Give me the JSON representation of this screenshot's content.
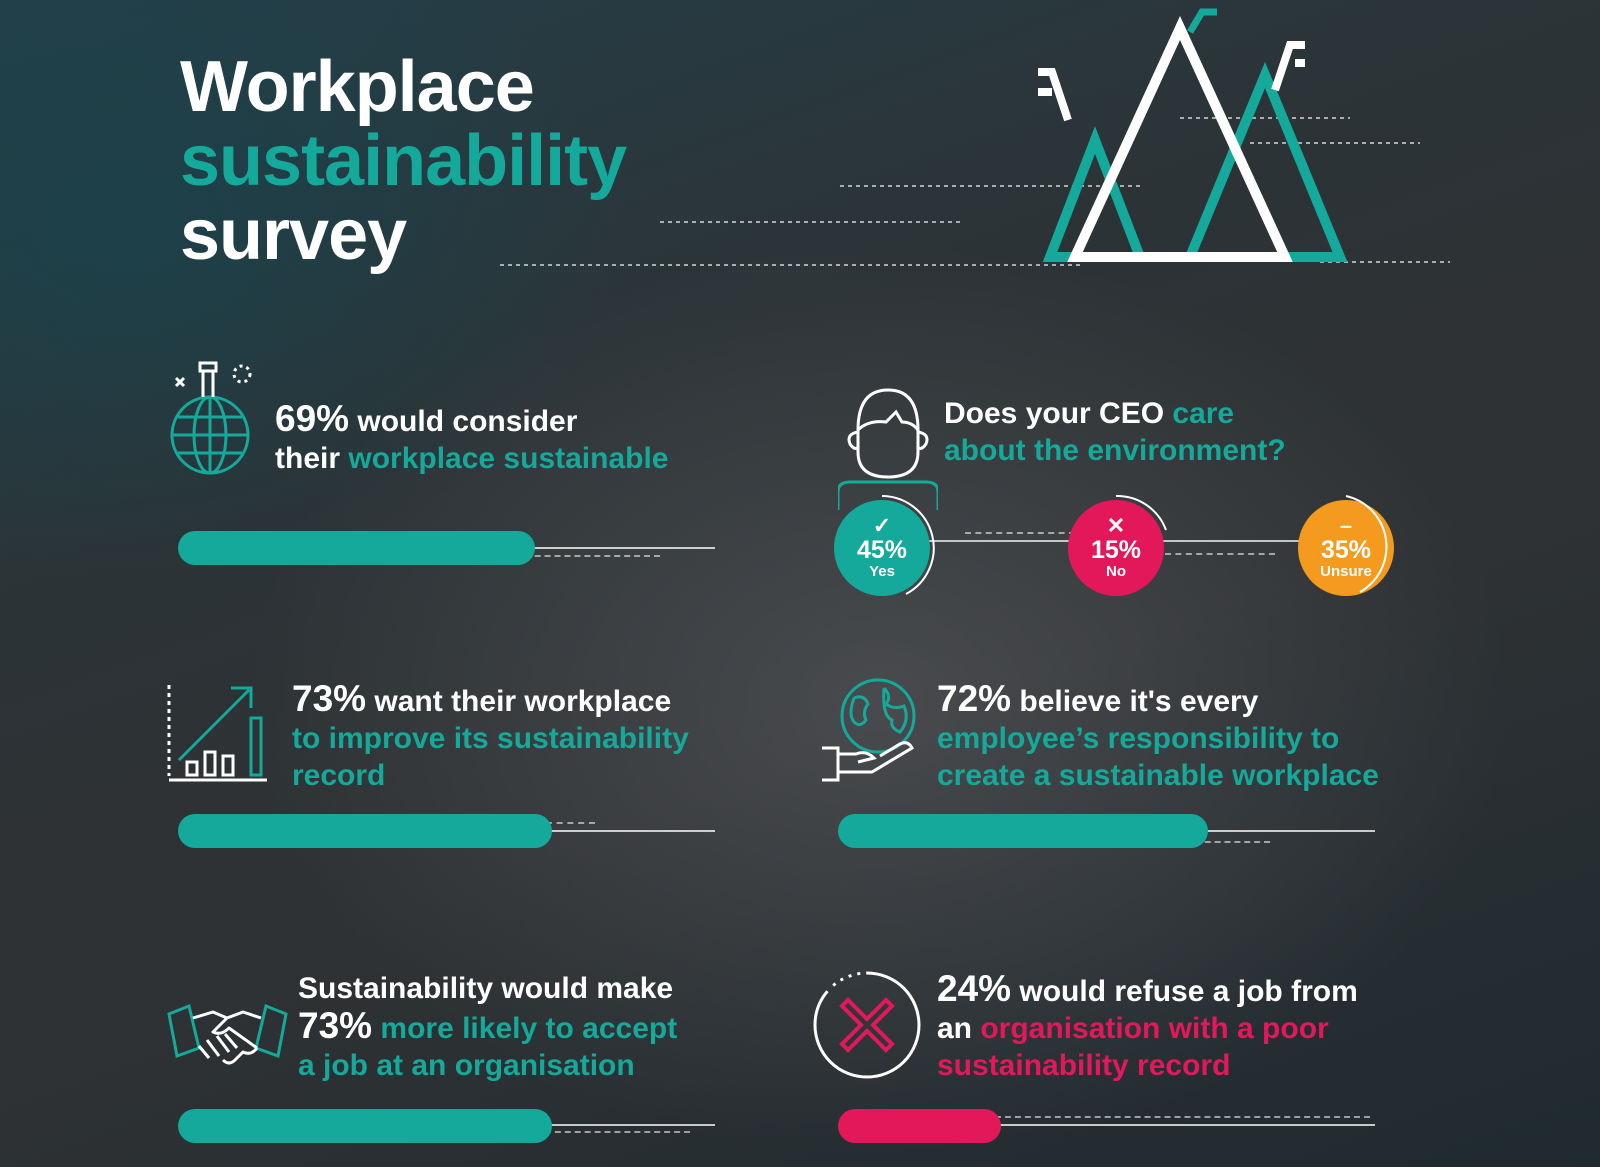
{
  "header": {
    "title_line1": "Workplace",
    "title_line2": "sustainability",
    "title_line3": "survey"
  },
  "colors": {
    "teal": "#14a99a",
    "pink": "#e3185a",
    "orange": "#f49a1e",
    "white": "#ffffff"
  },
  "stats": {
    "consider": {
      "icon": "globe-flask-icon",
      "pct": "69%",
      "text_a": " would consider",
      "text_b": "their ",
      "highlight": "workplace sustainable",
      "value": 69
    },
    "improve": {
      "icon": "growth-chart-icon",
      "pct": "73%",
      "text_a": " want their workplace",
      "highlight_l2": "to improve its sustainability",
      "highlight_l3": "record",
      "value": 73
    },
    "accept": {
      "icon": "handshake-icon",
      "line1": "Sustainability would make",
      "pct": "73%",
      "highlight_l2": " more likely to accept",
      "highlight_l3": "a job at an organisation",
      "value": 73
    },
    "responsibility": {
      "icon": "globe-hand-icon",
      "pct": "72%",
      "text_a": " believe it's every",
      "highlight_l2": "employee’s responsibility to",
      "highlight_l3": "create a sustainable workplace",
      "value": 72
    },
    "refuse": {
      "icon": "cross-circle-icon",
      "pct": "24%",
      "text_a": " would refuse a job from",
      "text_b": "an ",
      "highlight_l2": "organisation with a poor",
      "highlight_l3": "sustainability record",
      "value": 24
    }
  },
  "ceo": {
    "icon": "person-head-icon",
    "q_a": "Does your CEO ",
    "q_hl": "care",
    "q_line2": "about the environment?",
    "answers": [
      {
        "mark": "✓",
        "pct": "45%",
        "label": "Yes",
        "color": "#14a99a",
        "value": 45
      },
      {
        "mark": "✕",
        "pct": "15%",
        "label": "No",
        "color": "#e3185a",
        "value": 15
      },
      {
        "mark": "–",
        "pct": "35%",
        "label": "Unsure",
        "color": "#f49a1e",
        "value": 35
      }
    ]
  }
}
